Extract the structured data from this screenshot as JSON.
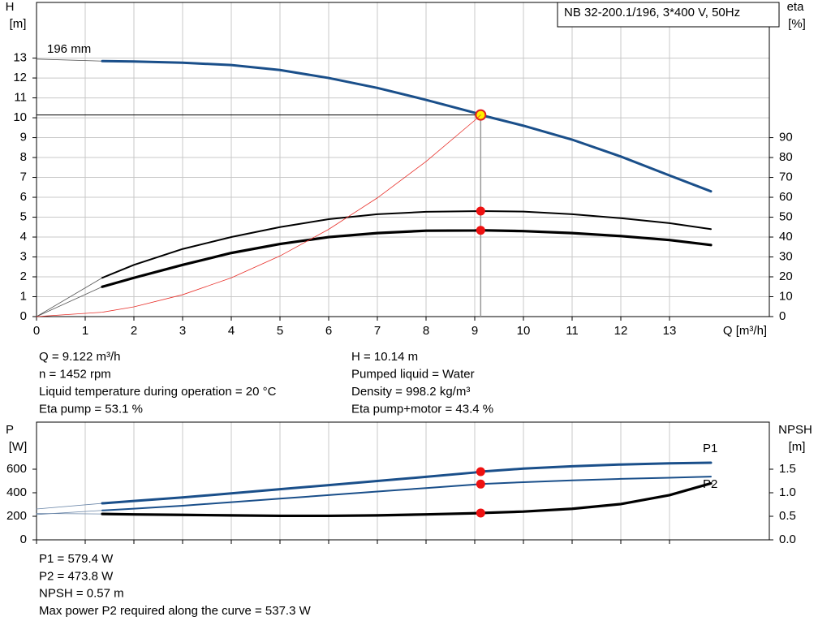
{
  "chart_data": [
    {
      "type": "line",
      "title": "NB 32-200.1/196, 3*400 V, 50Hz",
      "xlabel": "Q [m³/h]",
      "ylabel": "H",
      "yunit": "[m]",
      "y2label": "eta",
      "y2unit": "[%]",
      "x": [
        0,
        1.35,
        2,
        3,
        4,
        5,
        6,
        7,
        8,
        9,
        9.122,
        10,
        11,
        12,
        13,
        13.85
      ],
      "series": [
        {
          "name": "196 mm",
          "color": "#1a4f8a",
          "values": [
            12.95,
            12.85,
            12.83,
            12.77,
            12.65,
            12.4,
            12.0,
            11.5,
            10.9,
            10.25,
            10.14,
            9.6,
            8.9,
            8.05,
            7.1,
            6.3
          ]
        },
        {
          "color": "#000000",
          "axis": "y2",
          "values": [
            0,
            19.5,
            26,
            34,
            40,
            45,
            49,
            51.5,
            52.7,
            53.0,
            53.1,
            52.8,
            51.5,
            49.5,
            47,
            44
          ]
        },
        {
          "color": "#000000",
          "axis": "y2",
          "values": [
            0,
            15,
            19.5,
            26,
            32,
            36.5,
            40,
            42,
            43.2,
            43.3,
            43.4,
            43,
            42,
            40.5,
            38.5,
            36
          ]
        },
        {
          "color": "#e8302a",
          "values": [
            0,
            0.22,
            0.49,
            1.1,
            1.95,
            3.05,
            4.39,
            5.97,
            7.8,
            9.87,
            10.14,
            null,
            null,
            null,
            null,
            null
          ]
        }
      ],
      "xlim": [
        0,
        15.05
      ],
      "xticks": [
        0,
        1,
        2,
        3,
        4,
        5,
        6,
        7,
        8,
        9,
        10,
        11,
        12,
        13
      ],
      "ylim": [
        0,
        15.8
      ],
      "yticks": [
        0,
        1,
        2,
        3,
        4,
        5,
        6,
        7,
        8,
        9,
        10,
        11,
        12,
        13
      ],
      "y2lim": [
        0,
        158
      ],
      "y2ticks": [
        0,
        10,
        20,
        30,
        40,
        50,
        60,
        70,
        80,
        90
      ],
      "grid": true,
      "info": [
        "Q = 9.122 m³/h",
        "n = 1452 rpm",
        "Liquid temperature during operation = 20 °C",
        "Eta pump = 53.1 %",
        "H = 10.14 m",
        "Pumped liquid = Water",
        "Density = 998.2 kg/m³",
        "Eta pump+motor = 43.4 %"
      ]
    },
    {
      "type": "line",
      "ylabel": "P",
      "yunit": "[W]",
      "y2label": "NPSH",
      "y2unit": "[m]",
      "x": [
        0,
        1.35,
        2,
        3,
        4,
        5,
        6,
        7,
        8,
        9,
        9.122,
        10,
        11,
        12,
        13,
        13.85
      ],
      "series": [
        {
          "name": "P1",
          "color": "#1a4f8a",
          "values": [
            262,
            310,
            330,
            360,
            395,
            430,
            465,
            500,
            535,
            572,
            579.4,
            605,
            625,
            640,
            650,
            655
          ]
        },
        {
          "name": "P2",
          "color": "#1a4f8a",
          "values": [
            215,
            250,
            265,
            290,
            320,
            350,
            380,
            410,
            440,
            470,
            473.8,
            490,
            505,
            518,
            528,
            537.3
          ]
        },
        {
          "color": "#000000",
          "axis": "y2",
          "values": [
            0.56,
            0.55,
            0.54,
            0.53,
            0.52,
            0.51,
            0.51,
            0.52,
            0.54,
            0.565,
            0.57,
            0.6,
            0.66,
            0.76,
            0.95,
            1.2
          ]
        }
      ],
      "xlim": [
        0,
        15.05
      ],
      "ylim": [
        0,
        1000
      ],
      "yticks": [
        0,
        200,
        400,
        600
      ],
      "y2lim": [
        0,
        2.5
      ],
      "y2ticks": [
        {
          "value": 0,
          "label": "0.0"
        },
        0.5,
        {
          "value": 1,
          "label": "1.0"
        },
        1.5
      ],
      "grid": "x",
      "info": [
        "P1 = 579.4 W",
        "P2 = 473.8 W",
        "NPSH = 0.57 m",
        "Max power P2 required along the curve = 537.3 W"
      ]
    }
  ]
}
